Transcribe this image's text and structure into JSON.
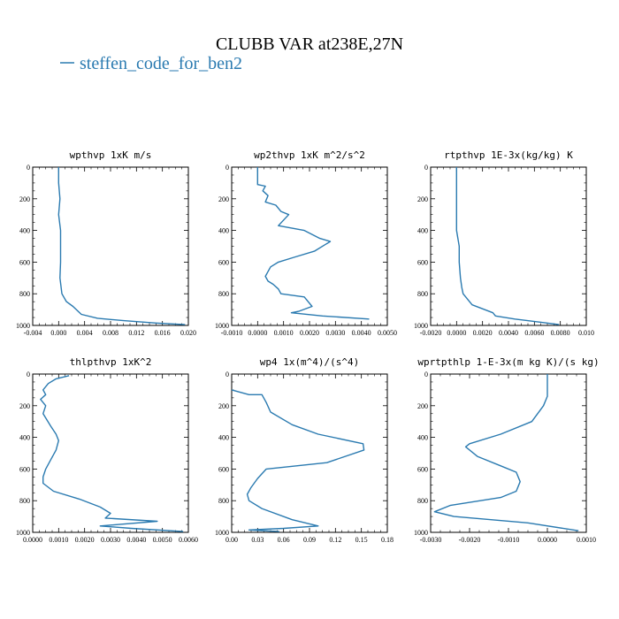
{
  "figure": {
    "title": "CLUBB VAR at238E,27N",
    "legend_label": "steffen_code_for_ben2",
    "line_color": "#2a7ab0"
  },
  "chart_data": [
    {
      "type": "line",
      "title": "wpthvp  1xK m/s",
      "xlim": [
        -0.004,
        0.02
      ],
      "ylim": [
        0,
        1000
      ],
      "y_inverted": true,
      "xticks": [
        -0.004,
        0.0,
        0.004,
        0.008,
        0.012,
        0.016,
        0.02
      ],
      "xticklabels": [
        "-0.004",
        "0.000",
        "0.004",
        "0.008",
        "0.012",
        "0.016",
        "0.020"
      ],
      "yticks": [
        0,
        200,
        400,
        600,
        800,
        1000
      ],
      "yticklabels": [
        "0",
        "200",
        "400",
        "600",
        "800",
        "1000"
      ],
      "series": [
        {
          "x": [
            0.0,
            0.0,
            0.0002,
            0.0,
            0.0003,
            0.0003,
            0.0003,
            0.0002,
            0.0005,
            0.0012,
            0.0022,
            0.0035,
            0.006,
            0.01,
            0.015,
            0.0195
          ],
          "y": [
            0,
            100,
            200,
            300,
            400,
            500,
            600,
            700,
            800,
            850,
            880,
            930,
            955,
            970,
            985,
            995
          ]
        }
      ]
    },
    {
      "type": "line",
      "title": "wp2thvp  1xK m^2/s^2",
      "xlim": [
        -0.001,
        0.005
      ],
      "ylim": [
        0,
        1000
      ],
      "y_inverted": true,
      "xticks": [
        -0.001,
        0.0,
        0.001,
        0.002,
        0.003,
        0.004,
        0.005
      ],
      "xticklabels": [
        "-0.0010",
        "0.0000",
        "0.0010",
        "0.0020",
        "0.0030",
        "0.0040",
        "0.0050"
      ],
      "yticks": [
        0,
        200,
        400,
        600,
        800,
        1000
      ],
      "yticklabels": [
        "0",
        "200",
        "400",
        "600",
        "800",
        "1000"
      ],
      "series": [
        {
          "x": [
            0.0,
            0.0,
            0.0003,
            0.0002,
            0.0004,
            0.0003,
            0.0007,
            0.0009,
            0.0012,
            0.0008,
            0.0018,
            0.0024,
            0.0028,
            0.0026,
            0.0022,
            0.0014,
            0.0008,
            0.0005,
            0.0004,
            0.0003,
            0.0004,
            0.0006,
            0.0008,
            0.0009,
            0.0018,
            0.0021,
            0.0016,
            0.0013,
            0.0025,
            0.0043
          ],
          "y": [
            0,
            110,
            120,
            150,
            180,
            220,
            240,
            280,
            300,
            370,
            400,
            450,
            470,
            490,
            530,
            570,
            600,
            630,
            660,
            690,
            720,
            740,
            770,
            800,
            820,
            880,
            910,
            920,
            940,
            960
          ]
        }
      ]
    },
    {
      "type": "line",
      "title": "rtpthvp  1E-3x(kg/kg) K",
      "xlim": [
        -0.002,
        0.01
      ],
      "ylim": [
        0,
        1000
      ],
      "y_inverted": true,
      "xticks": [
        -0.002,
        0.0,
        0.002,
        0.004,
        0.006,
        0.008,
        0.01
      ],
      "xticklabels": [
        "-0.0020",
        "0.0000",
        "0.0020",
        "0.0040",
        "0.0060",
        "0.0080",
        "0.010"
      ],
      "yticks": [
        0,
        200,
        400,
        600,
        800,
        1000
      ],
      "yticklabels": [
        "0",
        "200",
        "400",
        "600",
        "800",
        "1000"
      ],
      "series": [
        {
          "x": [
            0.0,
            0.0,
            0.0,
            0.0,
            0.0002,
            0.0002,
            0.0003,
            0.0004,
            0.0005,
            0.0012,
            0.0028,
            0.003,
            0.0045,
            0.0065,
            0.0079
          ],
          "y": [
            0,
            200,
            380,
            400,
            500,
            600,
            700,
            760,
            800,
            870,
            920,
            940,
            960,
            980,
            995
          ]
        }
      ]
    },
    {
      "type": "line",
      "title": "thlpthvp  1xK^2",
      "xlim": [
        0.0,
        0.006
      ],
      "ylim": [
        0,
        1000
      ],
      "y_inverted": true,
      "xticks": [
        0.0,
        0.001,
        0.002,
        0.003,
        0.004,
        0.005,
        0.006
      ],
      "xticklabels": [
        "0.0000",
        "0.0010",
        "0.0020",
        "0.0030",
        "0.0040",
        "0.0050",
        "0.0060"
      ],
      "yticks": [
        0,
        200,
        400,
        600,
        800,
        1000
      ],
      "yticklabels": [
        "0",
        "200",
        "400",
        "600",
        "800",
        "1000"
      ],
      "series": [
        {
          "x": [
            0.0014,
            0.0009,
            0.0006,
            0.0004,
            0.0005,
            0.0003,
            0.0005,
            0.0004,
            0.0007,
            0.0009,
            0.001,
            0.0009,
            0.0007,
            0.0005,
            0.0004,
            0.0004,
            0.0008,
            0.0018,
            0.0026,
            0.003,
            0.0028,
            0.0048,
            0.0026,
            0.0038,
            0.0058
          ],
          "y": [
            10,
            30,
            60,
            100,
            130,
            160,
            200,
            250,
            330,
            380,
            420,
            480,
            540,
            600,
            650,
            690,
            740,
            790,
            840,
            880,
            910,
            930,
            960,
            975,
            995
          ]
        }
      ]
    },
    {
      "type": "line",
      "title": "wp4  1x(m^4)/(s^4)",
      "xlim": [
        0.0,
        0.18
      ],
      "ylim": [
        0,
        1000
      ],
      "y_inverted": true,
      "xticks": [
        0.0,
        0.03,
        0.06,
        0.09,
        0.12,
        0.15,
        0.18
      ],
      "xticklabels": [
        "0.00",
        "0.03",
        "0.06",
        "0.09",
        "0.12",
        "0.15",
        "0.18"
      ],
      "yticks": [
        0,
        200,
        400,
        600,
        800,
        1000
      ],
      "yticklabels": [
        "0",
        "200",
        "400",
        "600",
        "800",
        "1000"
      ],
      "series": [
        {
          "x": [
            0.0,
            0.02,
            0.035,
            0.04,
            0.045,
            0.07,
            0.1,
            0.152,
            0.153,
            0.11,
            0.04,
            0.03,
            0.022,
            0.018,
            0.02,
            0.035,
            0.07,
            0.1,
            0.06,
            0.02,
            0.055
          ],
          "y": [
            100,
            130,
            130,
            180,
            240,
            320,
            380,
            440,
            480,
            560,
            600,
            660,
            720,
            760,
            800,
            850,
            920,
            960,
            975,
            985,
            995
          ]
        }
      ]
    },
    {
      "type": "line",
      "title": "wprtpthlp  1-E-3x(m kg K)/(s kg)",
      "xlim": [
        -0.003,
        0.001
      ],
      "ylim": [
        0,
        1000
      ],
      "y_inverted": true,
      "xticks": [
        -0.003,
        -0.002,
        -0.001,
        0.0,
        0.001
      ],
      "xticklabels": [
        "-0.0030",
        "-0.0020",
        "-0.0010",
        "0.0000",
        "0.0010"
      ],
      "yticks": [
        0,
        200,
        400,
        600,
        800,
        1000
      ],
      "yticklabels": [
        "0",
        "200",
        "400",
        "600",
        "800",
        "1000"
      ],
      "series": [
        {
          "x": [
            0.0,
            0.0,
            -0.0001,
            -0.0004,
            -0.0012,
            -0.002,
            -0.0021,
            -0.0018,
            -0.0012,
            -0.0008,
            -0.0007,
            -0.0008,
            -0.0012,
            -0.0025,
            -0.0029,
            -0.0024,
            -0.0005,
            0.0008
          ],
          "y": [
            0,
            140,
            200,
            300,
            380,
            440,
            460,
            520,
            580,
            620,
            680,
            740,
            780,
            830,
            870,
            900,
            940,
            990
          ]
        }
      ]
    }
  ]
}
